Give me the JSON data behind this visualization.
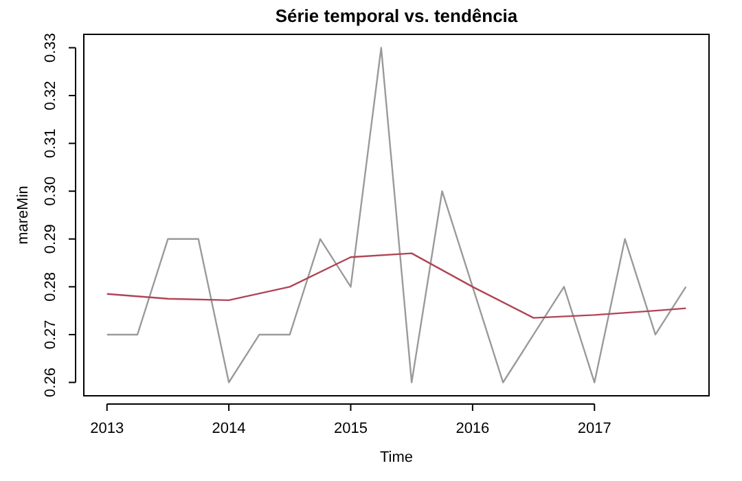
{
  "chart_data": {
    "type": "line",
    "title": "Série temporal vs. tendência",
    "xlabel": "Time",
    "ylabel": "mareMin",
    "xlim": [
      2012.81,
      2017.94
    ],
    "xticks": [
      2013,
      2014,
      2015,
      2016,
      2017
    ],
    "ylim": [
      0.2572,
      0.3328
    ],
    "yticks": [
      0.26,
      0.27,
      0.28,
      0.29,
      {
        "value": 0.3,
        "label": "0.30"
      },
      0.31,
      0.32,
      0.33
    ],
    "grid": false,
    "marker": "none",
    "line_style": "solid",
    "series": [
      {
        "color": "#9a9a9a",
        "x": [
          2013,
          2013.25,
          2013.5,
          2013.75,
          2014,
          2014.25,
          2014.5,
          2014.75,
          2015,
          2015.25,
          2015.5,
          2015.75,
          2016,
          2016.25,
          2016.5,
          2016.75,
          2017,
          2017.25,
          2017.5,
          2017.75
        ],
        "values": [
          0.27,
          0.27,
          0.29,
          0.29,
          0.26,
          0.27,
          0.27,
          0.29,
          0.28,
          0.33,
          0.26,
          0.3,
          0.28,
          0.26,
          0.27,
          0.28,
          0.26,
          0.29,
          0.27,
          0.28
        ]
      },
      {
        "color": "#b04455",
        "x": [
          2013,
          2013.5,
          2014,
          2014.5,
          2015,
          2015.5,
          2016,
          2016.5,
          2017,
          2017.5,
          2017.75
        ],
        "values": [
          0.2785,
          0.2775,
          0.2772,
          0.28,
          0.2862,
          0.287,
          0.28,
          0.2735,
          0.2741,
          0.275,
          0.2755
        ]
      }
    ]
  }
}
